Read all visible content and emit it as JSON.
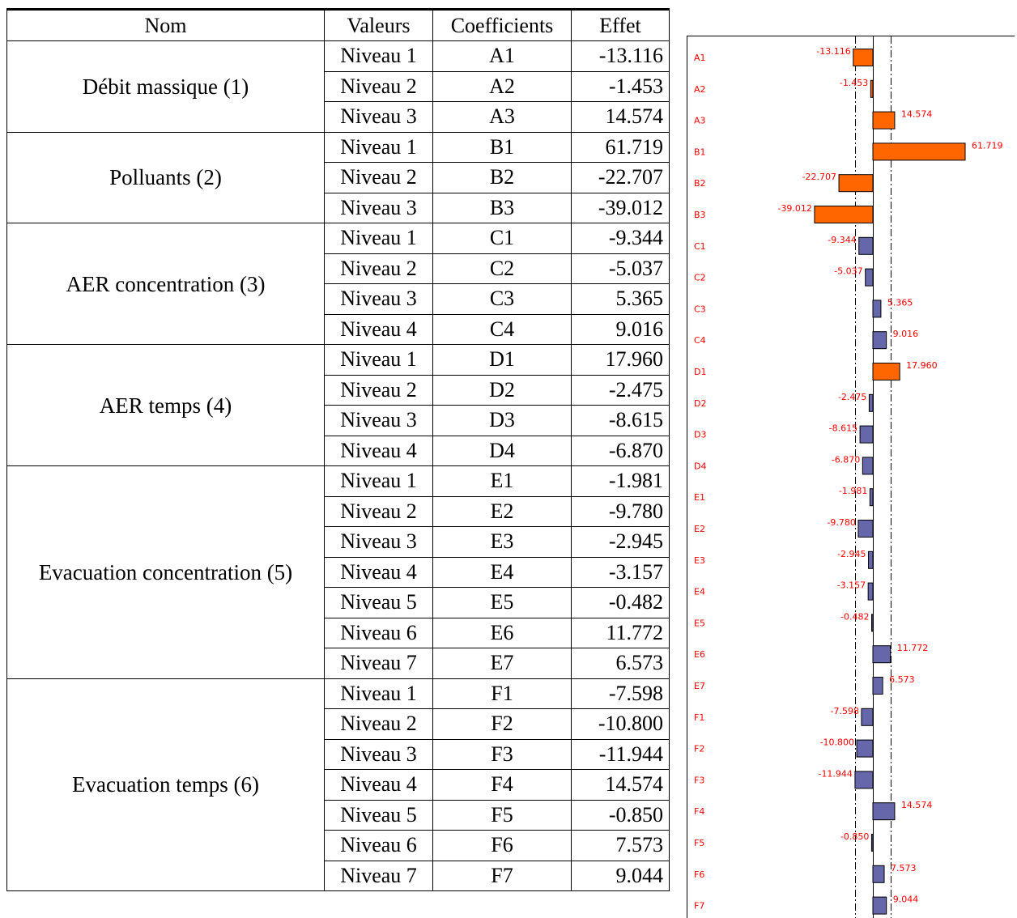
{
  "table": {
    "headers": [
      "Nom",
      "Valeurs",
      "Coefficients",
      "Effet"
    ],
    "groups": [
      {
        "name": "Débit massique (1)",
        "rows": [
          {
            "level": "Niveau 1",
            "coef": "A1",
            "effect": "-13.116"
          },
          {
            "level": "Niveau 2",
            "coef": "A2",
            "effect": "-1.453"
          },
          {
            "level": "Niveau 3",
            "coef": "A3",
            "effect": "14.574"
          }
        ]
      },
      {
        "name": "Polluants (2)",
        "rows": [
          {
            "level": "Niveau 1",
            "coef": "B1",
            "effect": "61.719"
          },
          {
            "level": "Niveau 2",
            "coef": "B2",
            "effect": "-22.707"
          },
          {
            "level": "Niveau 3",
            "coef": "B3",
            "effect": "-39.012"
          }
        ]
      },
      {
        "name": "AER concentration (3)",
        "rows": [
          {
            "level": "Niveau 1",
            "coef": "C1",
            "effect": "-9.344"
          },
          {
            "level": "Niveau 2",
            "coef": "C2",
            "effect": "-5.037"
          },
          {
            "level": "Niveau 3",
            "coef": "C3",
            "effect": "5.365"
          },
          {
            "level": "Niveau 4",
            "coef": "C4",
            "effect": "9.016"
          }
        ]
      },
      {
        "name": "AER temps (4)",
        "rows": [
          {
            "level": "Niveau 1",
            "coef": "D1",
            "effect": "17.960"
          },
          {
            "level": "Niveau 2",
            "coef": "D2",
            "effect": "-2.475"
          },
          {
            "level": "Niveau 3",
            "coef": "D3",
            "effect": "-8.615"
          },
          {
            "level": "Niveau 4",
            "coef": "D4",
            "effect": "-6.870"
          }
        ]
      },
      {
        "name": "Evacuation concentration (5)",
        "rows": [
          {
            "level": "Niveau 1",
            "coef": "E1",
            "effect": "-1.981"
          },
          {
            "level": "Niveau 2",
            "coef": "E2",
            "effect": "-9.780"
          },
          {
            "level": "Niveau 3",
            "coef": "E3",
            "effect": "-2.945"
          },
          {
            "level": "Niveau 4",
            "coef": "E4",
            "effect": "-3.157"
          },
          {
            "level": "Niveau 5",
            "coef": "E5",
            "effect": "-0.482"
          },
          {
            "level": "Niveau 6",
            "coef": "E6",
            "effect": "11.772"
          },
          {
            "level": "Niveau 7",
            "coef": "E7",
            "effect": "6.573"
          }
        ]
      },
      {
        "name": "Evacuation temps (6)",
        "rows": [
          {
            "level": "Niveau 1",
            "coef": "F1",
            "effect": "-7.598"
          },
          {
            "level": "Niveau 2",
            "coef": "F2",
            "effect": "-10.800"
          },
          {
            "level": "Niveau 3",
            "coef": "F3",
            "effect": "-11.944"
          },
          {
            "level": "Niveau 4",
            "coef": "F4",
            "effect": "14.574"
          },
          {
            "level": "Niveau 5",
            "coef": "F5",
            "effect": "-0.850"
          },
          {
            "level": "Niveau 6",
            "coef": "F6",
            "effect": "7.573"
          },
          {
            "level": "Niveau 7",
            "coef": "F7",
            "effect": "9.044"
          }
        ]
      }
    ]
  },
  "chart_data": {
    "type": "bar",
    "orientation": "horizontal",
    "categories": [
      "A1",
      "A2",
      "A3",
      "B1",
      "B2",
      "B3",
      "C1",
      "C2",
      "C3",
      "C4",
      "D1",
      "D2",
      "D3",
      "D4",
      "E1",
      "E2",
      "E3",
      "E4",
      "E5",
      "E6",
      "E7",
      "F1",
      "F2",
      "F3",
      "F4",
      "F5",
      "F6",
      "F7"
    ],
    "values": [
      -13.116,
      -1.453,
      14.574,
      61.719,
      -22.707,
      -39.012,
      -9.344,
      -5.037,
      5.365,
      9.016,
      17.96,
      -2.475,
      -8.615,
      -6.87,
      -1.981,
      -9.78,
      -2.945,
      -3.157,
      -0.482,
      11.772,
      6.573,
      -7.598,
      -10.8,
      -11.944,
      14.574,
      -0.85,
      7.573,
      9.044
    ],
    "value_labels": [
      "-13.116",
      "-1.453",
      "14.574",
      "61.719",
      "-22.707",
      "-39.012",
      "-9.344",
      "-5.037",
      "5.365",
      "9.016",
      "17.960",
      "-2.475",
      "-8.615",
      "-6.870",
      "-1.981",
      "-9.780",
      "-2.945",
      "-3.157",
      "-0.482",
      "11.772",
      "6.573",
      "-7.598",
      "-10.800",
      "-11.944",
      "14.574",
      "-0.850",
      "7.573",
      "9.044"
    ],
    "highlighted": [
      true,
      true,
      true,
      true,
      true,
      true,
      false,
      false,
      false,
      false,
      true,
      false,
      false,
      false,
      false,
      false,
      false,
      false,
      false,
      false,
      false,
      false,
      false,
      false,
      false,
      false,
      false,
      false
    ],
    "reference_lines": [
      -12.0,
      12.0
    ],
    "colors": {
      "highlighted": "#FF6600",
      "normal": "#6666AA",
      "label": "#FF0000",
      "category_label": "#FF0000",
      "edge": "#000000"
    }
  }
}
